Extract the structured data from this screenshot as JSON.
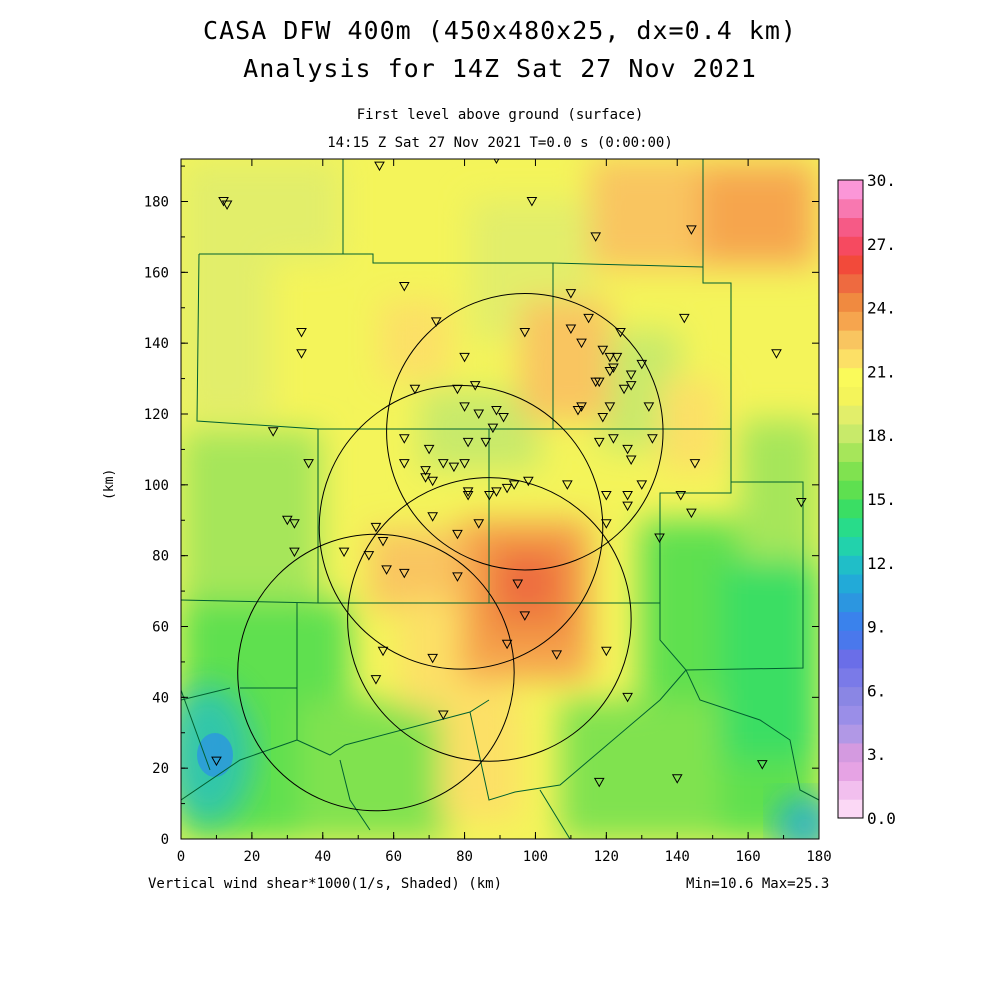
{
  "title_line1": "CASA DFW 400m (450x480x25, dx=0.4 km)",
  "title_line2": "Analysis for 14Z Sat 27 Nov 2021",
  "subtitle_line1": "First level above ground (surface)",
  "subtitle_line2": "14:15 Z Sat 27 Nov 2021   T=0.0 s (0:00:00)",
  "footer_left": "Vertical wind shear*1000(1/s, Shaded)  (km)",
  "footer_right": "Min=10.6 Max=25.3",
  "y_axis_label": "(km)",
  "x_ticks": [
    "0",
    "20",
    "40",
    "60",
    "80",
    "100",
    "120",
    "140",
    "160",
    "180"
  ],
  "y_ticks": [
    "0",
    "20",
    "40",
    "60",
    "80",
    "100",
    "120",
    "140",
    "160",
    "180"
  ],
  "x_range_km": [
    0,
    180
  ],
  "y_range_km": [
    0,
    192
  ],
  "colorbar": {
    "labels": [
      "0.0",
      "3.",
      "6.",
      "9.",
      "12.",
      "15.",
      "18.",
      "21.",
      "24.",
      "27.",
      "30."
    ],
    "range": [
      0,
      30
    ],
    "colors": [
      "#fbd8f5",
      "#f2bfee",
      "#e6a3e4",
      "#d49ae0",
      "#b198e6",
      "#9a8ee8",
      "#8a86e4",
      "#7a7ae8",
      "#6a6ee8",
      "#4a78ec",
      "#3a82ec",
      "#2c96e0",
      "#22aad8",
      "#20bec8",
      "#22d2ac",
      "#28dc8a",
      "#3ade64",
      "#5ee050",
      "#80e250",
      "#a6e65a",
      "#c8ea6a",
      "#e2ee6a",
      "#f4f45a",
      "#fafa5a",
      "#fce066",
      "#f9c560",
      "#f6a54e",
      "#f08a40",
      "#ee6a40",
      "#f24a3a",
      "#f64a60",
      "#f65a86",
      "#f878b0",
      "#fb96d8"
    ]
  },
  "chart_data": {
    "type": "map-contour",
    "variable": "Vertical wind shear*1000(1/s, Shaded)",
    "min": 10.6,
    "max": 25.3,
    "radar_rings": [
      {
        "center_km": [
          55,
          47
        ],
        "radius_km": 39
      },
      {
        "center_km": [
          97,
          115
        ],
        "radius_km": 39
      },
      {
        "center_km": [
          79,
          88
        ],
        "radius_km": 40
      },
      {
        "center_km": [
          87,
          62
        ],
        "radius_km": 40
      }
    ],
    "stations_km": [
      [
        12,
        180
      ],
      [
        13,
        179
      ],
      [
        56,
        190
      ],
      [
        89,
        192
      ],
      [
        99,
        180
      ],
      [
        117,
        170
      ],
      [
        144,
        172
      ],
      [
        63,
        156
      ],
      [
        72,
        146
      ],
      [
        34,
        143
      ],
      [
        34,
        137
      ],
      [
        110,
        154
      ],
      [
        115,
        147
      ],
      [
        124,
        143
      ],
      [
        110,
        144
      ],
      [
        97,
        143
      ],
      [
        142,
        147
      ],
      [
        168,
        137
      ],
      [
        113,
        140
      ],
      [
        119,
        138
      ],
      [
        121,
        136
      ],
      [
        123,
        136
      ],
      [
        121,
        132
      ],
      [
        122,
        133
      ],
      [
        118,
        129
      ],
      [
        117,
        129
      ],
      [
        130,
        134
      ],
      [
        127,
        131
      ],
      [
        127,
        128
      ],
      [
        125,
        127
      ],
      [
        80,
        136
      ],
      [
        83,
        128
      ],
      [
        78,
        127
      ],
      [
        66,
        127
      ],
      [
        80,
        122
      ],
      [
        84,
        120
      ],
      [
        91,
        119
      ],
      [
        89,
        121
      ],
      [
        88,
        116
      ],
      [
        113,
        122
      ],
      [
        112,
        121
      ],
      [
        121,
        122
      ],
      [
        119,
        119
      ],
      [
        132,
        122
      ],
      [
        26,
        115
      ],
      [
        36,
        106
      ],
      [
        63,
        113
      ],
      [
        63,
        106
      ],
      [
        70,
        110
      ],
      [
        74,
        106
      ],
      [
        77,
        105
      ],
      [
        69,
        104
      ],
      [
        69,
        102
      ],
      [
        71,
        101
      ],
      [
        80,
        106
      ],
      [
        81,
        112
      ],
      [
        86,
        112
      ],
      [
        126,
        110
      ],
      [
        122,
        113
      ],
      [
        118,
        112
      ],
      [
        127,
        107
      ],
      [
        133,
        113
      ],
      [
        145,
        106
      ],
      [
        98,
        101
      ],
      [
        94,
        100
      ],
      [
        92,
        99
      ],
      [
        89,
        98
      ],
      [
        87,
        97
      ],
      [
        81,
        98
      ],
      [
        81,
        97
      ],
      [
        109,
        100
      ],
      [
        120,
        97
      ],
      [
        126,
        97
      ],
      [
        130,
        100
      ],
      [
        141,
        97
      ],
      [
        175,
        95
      ],
      [
        144,
        92
      ],
      [
        126,
        94
      ],
      [
        71,
        91
      ],
      [
        78,
        86
      ],
      [
        30,
        90
      ],
      [
        32,
        89
      ],
      [
        55,
        88
      ],
      [
        84,
        89
      ],
      [
        57,
        84
      ],
      [
        120,
        89
      ],
      [
        135,
        85
      ],
      [
        32,
        81
      ],
      [
        46,
        81
      ],
      [
        53,
        80
      ],
      [
        58,
        76
      ],
      [
        63,
        75
      ],
      [
        78,
        74
      ],
      [
        95,
        72
      ],
      [
        97,
        63
      ],
      [
        57,
        53
      ],
      [
        71,
        51
      ],
      [
        92,
        55
      ],
      [
        106,
        52
      ],
      [
        120,
        53
      ],
      [
        55,
        45
      ],
      [
        74,
        35
      ],
      [
        126,
        40
      ],
      [
        10,
        22
      ],
      [
        140,
        17
      ],
      [
        164,
        21
      ],
      [
        118,
        16
      ]
    ]
  }
}
